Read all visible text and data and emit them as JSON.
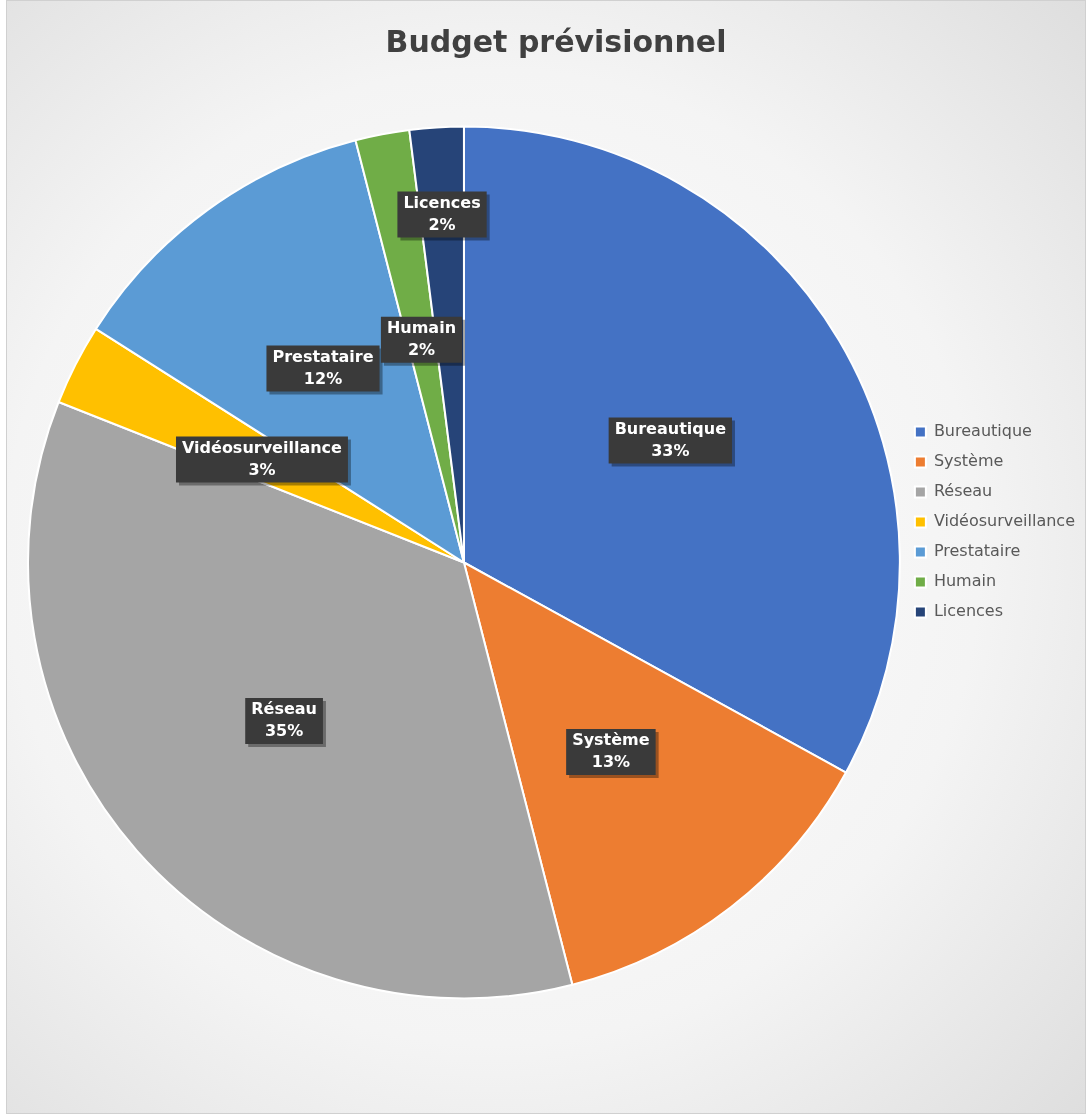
{
  "chart_data": {
    "type": "pie",
    "title": "Budget prévisionnel",
    "categories": [
      "Bureautique",
      "Système",
      "Réseau",
      "Vidéosurveillance",
      "Prestataire",
      "Humain",
      "Licences"
    ],
    "values": [
      33,
      13,
      35,
      3,
      12,
      2,
      2
    ],
    "colors": [
      "#4472c4",
      "#ed7d31",
      "#a5a5a5",
      "#ffc000",
      "#5b9bd5",
      "#70ad47",
      "#264478"
    ],
    "value_labels": [
      "33%",
      "13%",
      "35%",
      "3%",
      "12%",
      "2%",
      "2%"
    ],
    "legend": "right"
  }
}
